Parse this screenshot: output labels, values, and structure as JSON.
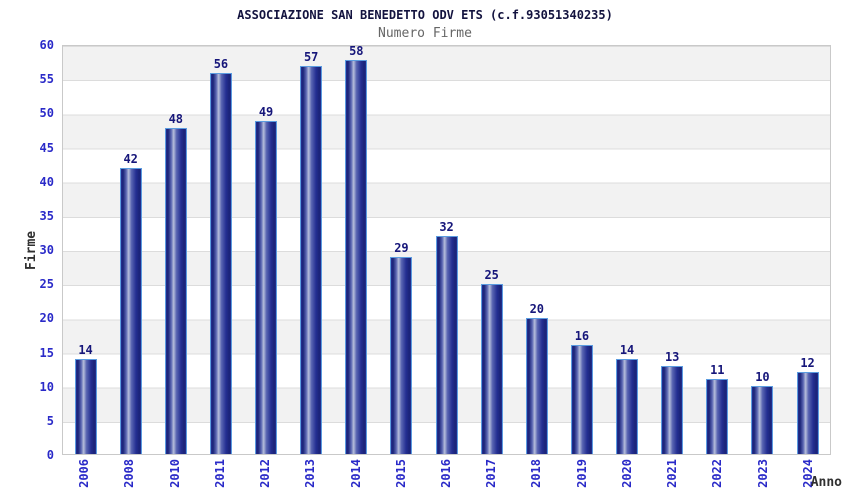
{
  "header": {
    "title": "ASSOCIAZIONE SAN BENEDETTO ODV ETS (c.f.93051340235)",
    "subtitle": "Numero Firme"
  },
  "axes": {
    "y_label": "Firme",
    "x_label": "Anno"
  },
  "colors": {
    "title": "#13133f",
    "subtitle": "#666666",
    "tick_label": "#2a2ac8",
    "bar_value_label": "#16167a",
    "bar_border": "#5b9ce0",
    "bar_dark": "#242f92",
    "bar_mid": "#5a66b2",
    "bar_light": "#b6bedb",
    "bar_shadow": "#1a2376",
    "band_gray": "#f2f2f2",
    "band_white": "#ffffff",
    "gridline": "#dcdcdc",
    "axis_title": "#303030"
  },
  "chart_data": {
    "type": "bar",
    "title": "ASSOCIAZIONE SAN BENEDETTO ODV ETS (c.f.93051340235)",
    "subtitle": "Numero Firme",
    "xlabel": "Anno",
    "ylabel": "Firme",
    "categories": [
      "2006",
      "2008",
      "2010",
      "2011",
      "2012",
      "2013",
      "2014",
      "2015",
      "2016",
      "2017",
      "2018",
      "2019",
      "2020",
      "2021",
      "2022",
      "2023",
      "2024"
    ],
    "values": [
      14,
      42,
      48,
      56,
      49,
      57,
      58,
      29,
      32,
      25,
      20,
      16,
      14,
      13,
      11,
      10,
      12
    ],
    "ylim": [
      0,
      60
    ],
    "y_ticks": [
      0,
      5,
      10,
      15,
      20,
      25,
      30,
      35,
      40,
      45,
      50,
      55,
      60
    ],
    "grid": "horizontal",
    "background_bands": "alternating gray/white every 5 units",
    "legend": "none",
    "bar_labels": "values shown above each bar",
    "x_label_rotation": 90
  }
}
